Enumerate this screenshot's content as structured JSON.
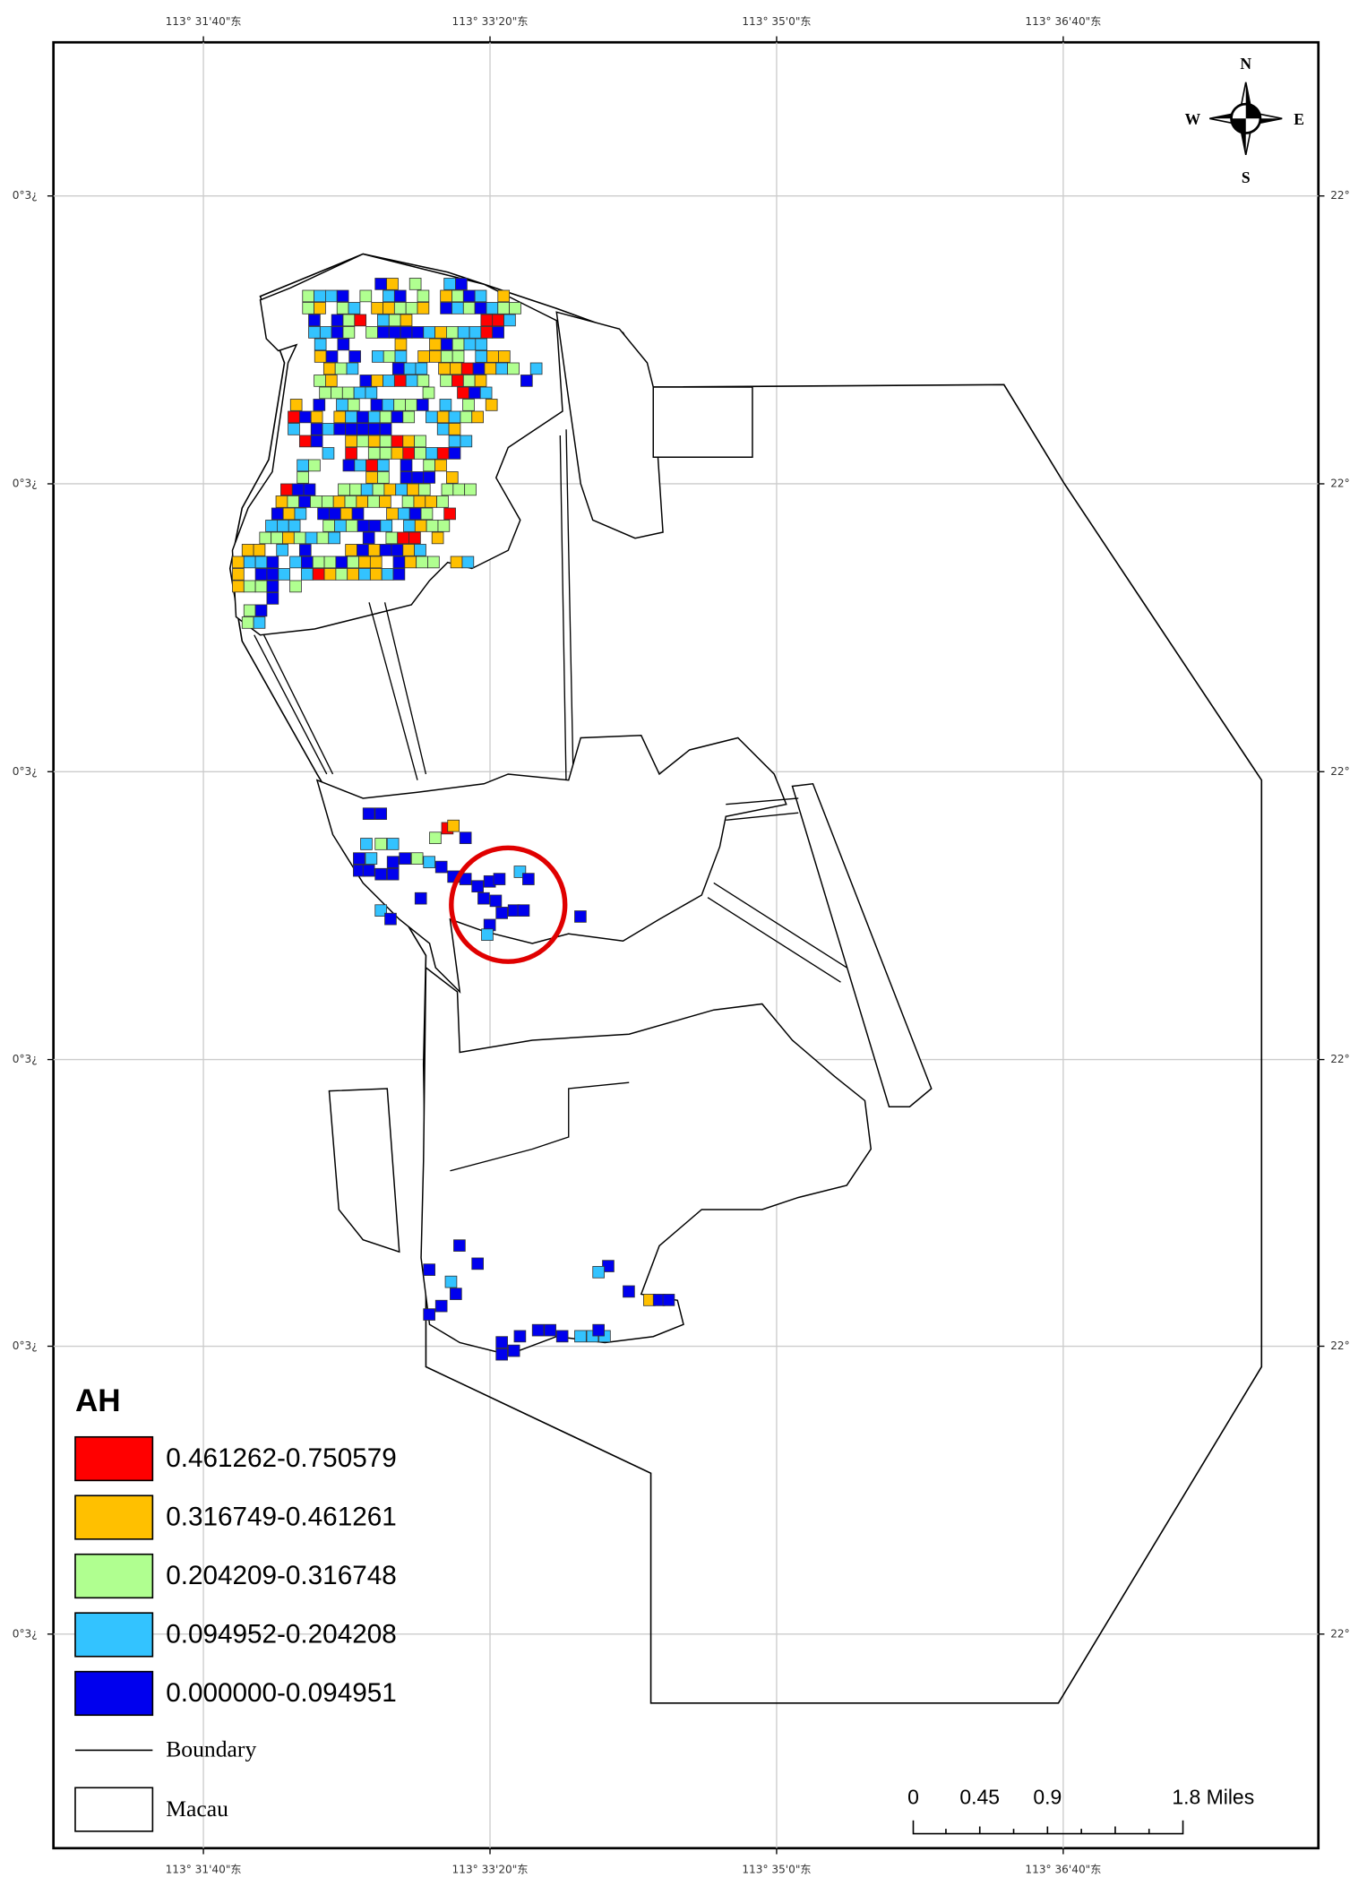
{
  "map": {
    "top_labels": [
      "113° 31'40\"东",
      "113° 33'20\"东",
      "113° 35'0\"东",
      "113° 36'40\"东"
    ],
    "bottom_labels": [
      "113° 31'40\"东",
      "113° 33'20\"东",
      "113° 35'0\"东",
      "113° 36'40\"东"
    ],
    "left_labels": [
      "0°3¿",
      "0°3¿",
      "0°3¿",
      "0°3¿",
      "0°3¿",
      "0°3¿"
    ],
    "right_labels": [
      "22°",
      "22°",
      "22°",
      "22°",
      "22°",
      "22°"
    ],
    "compass": {
      "north": "N",
      "south": "S",
      "east": "E",
      "west": "W"
    },
    "legend": {
      "title": "AH",
      "classes": [
        {
          "label": "0.461262-0.750579",
          "color": "#ff0000"
        },
        {
          "label": "0.316749-0.461261",
          "color": "#ffc000"
        },
        {
          "label": "0.204209-0.316748",
          "color": "#b0ff90"
        },
        {
          "label": "0.094952-0.204208",
          "color": "#33c3ff"
        },
        {
          "label": "0.000000-0.094951",
          "color": "#0000ee"
        }
      ],
      "boundary": "Boundary",
      "macau": "Macau"
    },
    "scale_bar": {
      "labels": [
        "0",
        "0.45",
        "0.9",
        "1.8 Miles"
      ]
    }
  }
}
